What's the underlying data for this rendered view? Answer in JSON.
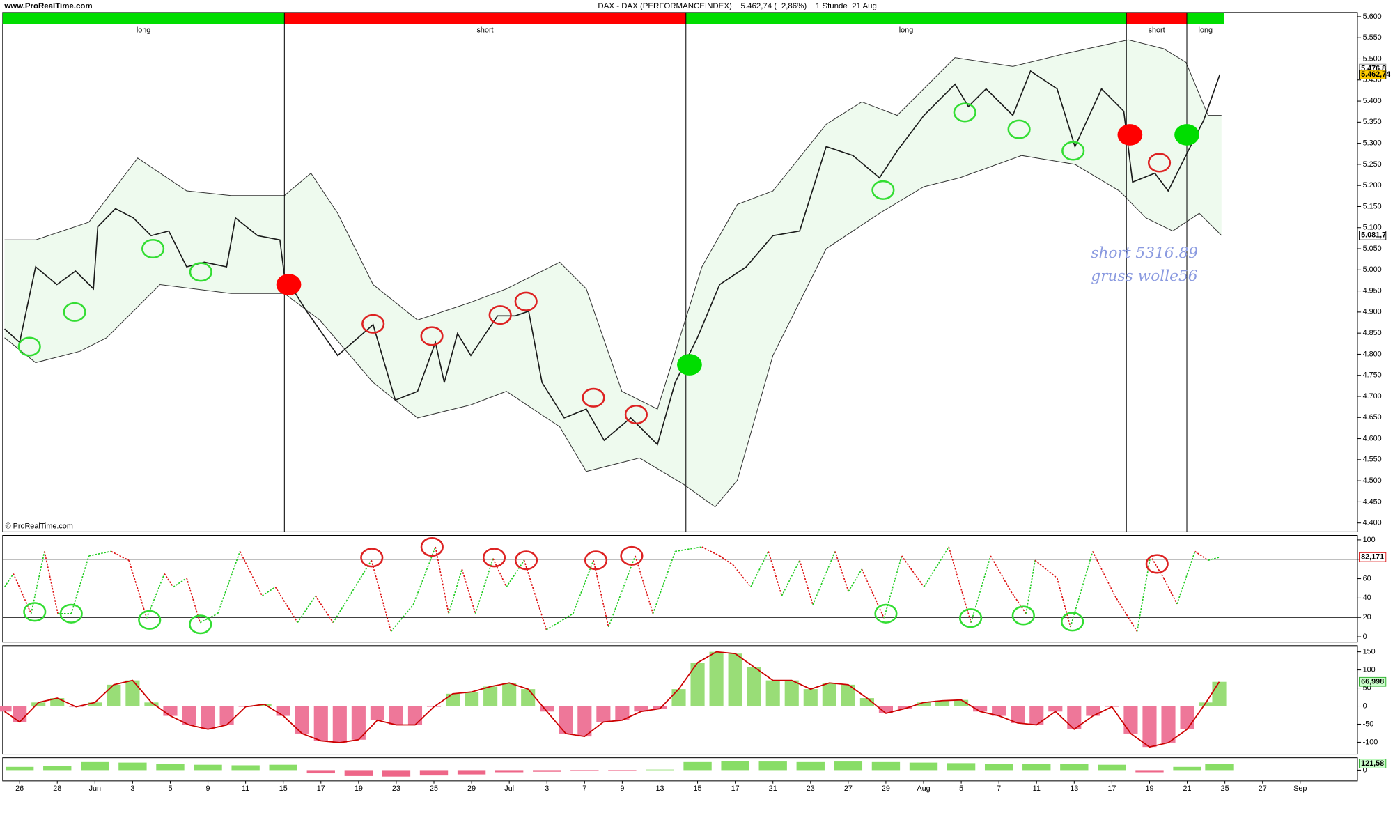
{
  "header": {
    "site": "www.ProRealTime.com",
    "title": "DAX - DAX (PERFORMANCEINDEX)    5.462,74 (+2,86%)    1 Stunde  21 Aug",
    "copyright": "© ProRealTime.com"
  },
  "chart_data": [
    {
      "type": "line",
      "color": "#1a1a1a",
      "xlim": [
        -0.9,
        71.04
      ],
      "ylim": [
        4379,
        5610
      ],
      "yticks": [
        {
          "value": 4400,
          "label": "4.400"
        },
        {
          "value": 4450,
          "label": "4.450"
        },
        {
          "value": 4500,
          "label": "4.500"
        },
        {
          "value": 4550,
          "label": "4.550"
        },
        {
          "value": 4600,
          "label": "4.600"
        },
        {
          "value": 4650,
          "label": "4.650"
        },
        {
          "value": 4700,
          "label": "4.700"
        },
        {
          "value": 4750,
          "label": "4.750"
        },
        {
          "value": 4800,
          "label": "4.800"
        },
        {
          "value": 4850,
          "label": "4.850"
        },
        {
          "value": 4900,
          "label": "4.900"
        },
        {
          "value": 4950,
          "label": "4.950"
        },
        {
          "value": 5000,
          "label": "5.000"
        },
        {
          "value": 5050,
          "label": "5.050"
        },
        {
          "value": 5100,
          "label": "5.100"
        },
        {
          "value": 5150,
          "label": "5.150"
        },
        {
          "value": 5200,
          "label": "5.200"
        },
        {
          "value": 5250,
          "label": "5.250"
        },
        {
          "value": 5300,
          "label": "5.300"
        },
        {
          "value": 5350,
          "label": "5.350"
        },
        {
          "value": 5400,
          "label": "5.400"
        },
        {
          "value": 5450,
          "label": "5.450"
        },
        {
          "value": 5500,
          "label": "5.500"
        },
        {
          "value": 5550,
          "label": "5.550"
        },
        {
          "value": 5600,
          "label": "5.600"
        }
      ],
      "x": [
        -0.8,
        0,
        0.85,
        1.98,
        2.97,
        3.92,
        4.15,
        5.09,
        6.04,
        6.98,
        7.92,
        8.87,
        9.81,
        10.99,
        11.46,
        12.64,
        13.82,
        14.06,
        15.24,
        16.89,
        18.77,
        19.95,
        21.13,
        22.08,
        22.55,
        23.25,
        23.96,
        25.38,
        26.32,
        27.03,
        27.74,
        28.92,
        30.09,
        31.04,
        32.45,
        33.87,
        34.81,
        35.99,
        37.17,
        38.58,
        40,
        41.42,
        42.83,
        44.25,
        45.66,
        46.6,
        48.02,
        49.67,
        50.38,
        51.32,
        52.74,
        53.68,
        55.09,
        56.04,
        57.45,
        58.63,
        59.1,
        60.28,
        60.99,
        61.93,
        62.88,
        63.73
      ],
      "values": [
        4860,
        4828,
        5007,
        4965,
        4997,
        4955,
        5102,
        5145,
        5123,
        5081,
        5092,
        5007,
        5018,
        5007,
        5123,
        5081,
        5071,
        4986,
        4902,
        4797,
        4870,
        4691,
        4712,
        4828,
        4733,
        4849,
        4797,
        4891,
        4891,
        4902,
        4733,
        4649,
        4670,
        4596,
        4649,
        4586,
        4733,
        4839,
        4965,
        5007,
        5081,
        5092,
        5292,
        5271,
        5218,
        5282,
        5366,
        5440,
        5387,
        5429,
        5366,
        5471,
        5429,
        5292,
        5429,
        5376,
        5208,
        5229,
        5187,
        5271,
        5355,
        5462.74
      ],
      "band_color": "#333333",
      "band_fill": "#eefaee",
      "band_upper": {
        "x": [
          -0.8,
          0.85,
          3.68,
          6.27,
          8.87,
          11.23,
          14.06,
          15.47,
          16.89,
          18.77,
          21.13,
          23.96,
          25.85,
          28.68,
          30.09,
          31.98,
          33.87,
          36.23,
          38.11,
          40,
          42.83,
          44.72,
          46.6,
          49.67,
          52.74,
          55.57,
          58.87,
          60.75,
          61.93,
          63.11,
          63.82
        ],
        "values": [
          5071,
          5071,
          5113,
          5265,
          5187,
          5176,
          5176,
          5229,
          5134,
          4965,
          4881,
          4923,
          4955,
          5018,
          4955,
          4712,
          4670,
          5007,
          5155,
          5187,
          5345,
          5398,
          5366,
          5503,
          5482,
          5513,
          5545,
          5524,
          5492,
          5366,
          5366
        ]
      },
      "band_lower": {
        "x": [
          -0.8,
          0.85,
          3.21,
          4.62,
          7.45,
          11.23,
          14.06,
          15.94,
          18.77,
          21.13,
          23.96,
          25.85,
          28.68,
          30.09,
          32.92,
          35.28,
          36.93,
          38.11,
          40,
          42.83,
          45.66,
          48.02,
          49.91,
          53.21,
          56.04,
          58.4,
          59.81,
          61.23,
          62.64,
          63.82
        ],
        "values": [
          4839,
          4780,
          4807,
          4839,
          4965,
          4944,
          4944,
          4881,
          4733,
          4649,
          4680,
          4712,
          4628,
          4522,
          4554,
          4491,
          4438,
          4501,
          4797,
          5050,
          5134,
          5197,
          5218,
          5271,
          5250,
          5187,
          5123,
          5092,
          5134,
          5081.7
        ]
      },
      "regimes": [
        {
          "label": "long",
          "start": -0.9,
          "end": 14.06,
          "color": "#00dd00"
        },
        {
          "label": "short",
          "start": 14.06,
          "end": 35.38,
          "color": "#ff0000"
        },
        {
          "label": "long",
          "start": 35.38,
          "end": 58.77,
          "color": "#00dd00"
        },
        {
          "label": "short",
          "start": 58.77,
          "end": 61.98,
          "color": "#ff0000"
        },
        {
          "label": "long",
          "start": 61.98,
          "end": 63.96,
          "color": "#00dd00"
        }
      ],
      "signals": [
        {
          "x": 14.29,
          "y": 4965,
          "color": "#ff0000"
        },
        {
          "x": 35.57,
          "y": 4775,
          "color": "#00dd00"
        },
        {
          "x": 58.96,
          "y": 5320,
          "color": "#ff0000"
        },
        {
          "x": 61.98,
          "y": 5320,
          "color": "#00dd00"
        }
      ],
      "circles": [
        {
          "x": 0.52,
          "y": 4818,
          "color": "#33dd33"
        },
        {
          "x": 2.92,
          "y": 4900,
          "color": "#33dd33"
        },
        {
          "x": 7.08,
          "y": 5050,
          "color": "#33dd33"
        },
        {
          "x": 9.62,
          "y": 4995,
          "color": "#33dd33"
        },
        {
          "x": 45.85,
          "y": 5189,
          "color": "#33dd33"
        },
        {
          "x": 50.19,
          "y": 5373,
          "color": "#33dd33"
        },
        {
          "x": 53.07,
          "y": 5333,
          "color": "#33dd33"
        },
        {
          "x": 55.94,
          "y": 5282,
          "color": "#33dd33"
        },
        {
          "x": 18.77,
          "y": 4872,
          "color": "#dd2222"
        },
        {
          "x": 21.89,
          "y": 4843,
          "color": "#dd2222"
        },
        {
          "x": 25.52,
          "y": 4893,
          "color": "#dd2222"
        },
        {
          "x": 26.89,
          "y": 4925,
          "color": "#dd2222"
        },
        {
          "x": 30.47,
          "y": 4697,
          "color": "#dd2222"
        },
        {
          "x": 32.74,
          "y": 4657,
          "color": "#dd2222"
        },
        {
          "x": 60.52,
          "y": 5254,
          "color": "#dd2222"
        }
      ],
      "annotations": [
        "short 5316.89",
        "gruss wolle56"
      ],
      "last_labels": [
        {
          "value": 5476.8,
          "label": "5.476,8",
          "fill": "#ffffff",
          "stroke": "#888888"
        },
        {
          "value": 5462.74,
          "label": "5.462,74",
          "fill": "#ffcc00",
          "stroke": "#000000"
        },
        {
          "value": 5081.7,
          "label": "5.081,7",
          "fill": "#ffffff",
          "stroke": "#000000"
        }
      ]
    },
    {
      "type": "line",
      "up_color": "#22cc22",
      "down_color": "#dd1111",
      "xlim": [
        -0.9,
        71.04
      ],
      "ylim": [
        -5.5,
        104.6
      ],
      "yticks": [
        0,
        20,
        40,
        60,
        80,
        100
      ],
      "levels": [
        20,
        80
      ],
      "x": [
        -0.8,
        -0.33,
        0.61,
        1.32,
        2.03,
        2.74,
        3.68,
        4.86,
        5.8,
        6.75,
        7.69,
        8.16,
        8.87,
        9.58,
        10.52,
        11.7,
        12.88,
        13.58,
        14.76,
        15.71,
        16.65,
        18.68,
        19.72,
        20.9,
        22.08,
        22.78,
        23.49,
        24.2,
        25.14,
        25.85,
        26.79,
        27.97,
        29.39,
        30.47,
        31.27,
        32.69,
        33.63,
        34.81,
        36.23,
        37.17,
        37.88,
        38.82,
        39.76,
        40.47,
        41.42,
        42.12,
        43.3,
        44.01,
        44.72,
        45.9,
        46.84,
        48.02,
        49.34,
        50.52,
        51.56,
        52.64,
        53.44,
        53.92,
        55.09,
        55.8,
        56.98,
        58.16,
        59.34,
        60.05,
        60.75,
        61.46,
        62.41,
        63.11,
        63.73
      ],
      "values": [
        51.4,
        65.1,
        23.9,
        88.1,
        23.9,
        23.9,
        83.5,
        88.1,
        78.9,
        19.3,
        65.1,
        51.4,
        60.6,
        14.7,
        23.9,
        88.1,
        42.2,
        51.4,
        14.7,
        42.2,
        14.7,
        78.9,
        5.5,
        33,
        92.7,
        23.9,
        69.7,
        23.9,
        80.7,
        51.4,
        78.9,
        7.3,
        23.9,
        78.9,
        10.1,
        83.5,
        23.9,
        88.1,
        92.7,
        83.5,
        74.3,
        51.4,
        88.1,
        42.2,
        78.9,
        33,
        88.1,
        46.8,
        69.7,
        19.3,
        83.5,
        51.4,
        92.7,
        14.7,
        83.5,
        46.8,
        23.9,
        78.9,
        60.6,
        10.1,
        88.1,
        42.2,
        5.5,
        83.5,
        60.6,
        33.9,
        88.1,
        78.9,
        82.171
      ],
      "circles": [
        {
          "x": 0.8,
          "y": 25.7,
          "color": "#33dd33"
        },
        {
          "x": 2.74,
          "y": 23.9,
          "color": "#33dd33"
        },
        {
          "x": 6.9,
          "y": 17.4,
          "color": "#33dd33"
        },
        {
          "x": 9.6,
          "y": 12.8,
          "color": "#33dd33"
        },
        {
          "x": 46,
          "y": 23.9,
          "color": "#33dd33"
        },
        {
          "x": 50.5,
          "y": 19.3,
          "color": "#33dd33"
        },
        {
          "x": 53.3,
          "y": 22,
          "color": "#33dd33"
        },
        {
          "x": 55.9,
          "y": 15.6,
          "color": "#33dd33"
        },
        {
          "x": 18.7,
          "y": 81.7,
          "color": "#dd2222"
        },
        {
          "x": 21.9,
          "y": 92.7,
          "color": "#dd2222"
        },
        {
          "x": 25.2,
          "y": 81.7,
          "color": "#dd2222"
        },
        {
          "x": 26.9,
          "y": 78.9,
          "color": "#dd2222"
        },
        {
          "x": 30.6,
          "y": 78.9,
          "color": "#dd2222"
        },
        {
          "x": 32.5,
          "y": 83.5,
          "color": "#dd2222"
        },
        {
          "x": 60.4,
          "y": 75.2,
          "color": "#dd2222"
        }
      ],
      "last_labels": [
        {
          "value": 82.171,
          "label": "82,171",
          "fill": "#ffffff",
          "stroke": "#dd1111"
        }
      ]
    },
    {
      "type": "bar",
      "pos_color": "#99dd77",
      "neg_color": "#ee7799",
      "line_color": "#cc0000",
      "zero_color": "#3333cc",
      "xlim": [
        -0.9,
        71.04
      ],
      "ylim": [
        -133,
        167
      ],
      "yticks": [
        -100,
        -50,
        0,
        50,
        100,
        150
      ],
      "x": [
        -0.8,
        0,
        1,
        2,
        3,
        4,
        5,
        6,
        7,
        8,
        9,
        10,
        11,
        12,
        13,
        14,
        15,
        16,
        17,
        18,
        19,
        20,
        21,
        22,
        23,
        24,
        25,
        26,
        27,
        28,
        29,
        30,
        31,
        32,
        33,
        34,
        35,
        36,
        37,
        38,
        39,
        40,
        41,
        42,
        43,
        44,
        45,
        46,
        47,
        48,
        49,
        50,
        51,
        52,
        53,
        54,
        55,
        56,
        57,
        58,
        59,
        60,
        61,
        62,
        63,
        63.7
      ],
      "values": [
        -15,
        -44,
        10,
        22,
        -2,
        10,
        59,
        71,
        10,
        -27,
        -52,
        -64,
        -52,
        -2,
        5,
        -27,
        -76,
        -96,
        -101,
        -93,
        -39,
        -52,
        -52,
        -2,
        34,
        39,
        54,
        64,
        47,
        -15,
        -76,
        -84,
        -44,
        -39,
        -15,
        -7,
        47,
        120,
        150,
        145,
        108,
        71,
        71,
        47,
        64,
        59,
        22,
        -20,
        -7,
        10,
        15,
        17,
        -15,
        -27,
        -47,
        -52,
        -15,
        -64,
        -27,
        -2,
        -76,
        -113,
        -101,
        -64,
        10,
        66.998
      ],
      "last_labels": [
        {
          "value": 66.998,
          "label": "66,998",
          "fill": "#ccffcc",
          "stroke": "#22aa22"
        }
      ]
    },
    {
      "type": "bar",
      "pos_color": "#88dd66",
      "neg_color": "#ee6688",
      "xlim": [
        -0.9,
        71.04
      ],
      "ylim": [
        -200,
        230
      ],
      "yticks": [
        0
      ],
      "x": [
        0,
        2,
        4,
        6,
        8,
        10,
        12,
        14,
        16,
        18,
        20,
        22,
        24,
        26,
        28,
        30,
        32,
        34,
        36,
        38,
        40,
        42,
        44,
        46,
        48,
        50,
        52,
        54,
        56,
        58,
        60,
        62,
        63.7
      ],
      "values": [
        60,
        70,
        150,
        140,
        110,
        100,
        90,
        100,
        -60,
        -110,
        -120,
        -100,
        -80,
        -40,
        -30,
        -20,
        -10,
        10,
        150,
        170,
        160,
        150,
        160,
        150,
        140,
        130,
        120,
        110,
        110,
        100,
        -40,
        60,
        121.58
      ],
      "last_labels": [
        {
          "value": 121.58,
          "label": "121,58",
          "fill": "#ccffcc",
          "stroke": "#22aa22"
        }
      ],
      "xticks": [
        {
          "value": 0,
          "label": "26"
        },
        {
          "value": 2,
          "label": "28"
        },
        {
          "value": 4,
          "label": "Jun"
        },
        {
          "value": 6,
          "label": "3"
        },
        {
          "value": 8,
          "label": "5"
        },
        {
          "value": 10,
          "label": "9"
        },
        {
          "value": 12,
          "label": "11"
        },
        {
          "value": 14,
          "label": "15"
        },
        {
          "value": 16,
          "label": "17"
        },
        {
          "value": 18,
          "label": "19"
        },
        {
          "value": 20,
          "label": "23"
        },
        {
          "value": 22,
          "label": "25"
        },
        {
          "value": 24,
          "label": "29"
        },
        {
          "value": 26,
          "label": "Jul"
        },
        {
          "value": 28,
          "label": "3"
        },
        {
          "value": 30,
          "label": "7"
        },
        {
          "value": 32,
          "label": "9"
        },
        {
          "value": 34,
          "label": "13"
        },
        {
          "value": 36,
          "label": "15"
        },
        {
          "value": 38,
          "label": "17"
        },
        {
          "value": 40,
          "label": "21"
        },
        {
          "value": 42,
          "label": "23"
        },
        {
          "value": 44,
          "label": "27"
        },
        {
          "value": 46,
          "label": "29"
        },
        {
          "value": 48,
          "label": "Aug"
        },
        {
          "value": 50,
          "label": "5"
        },
        {
          "value": 52,
          "label": "7"
        },
        {
          "value": 54,
          "label": "11"
        },
        {
          "value": 56,
          "label": "13"
        },
        {
          "value": 58,
          "label": "17"
        },
        {
          "value": 60,
          "label": "19"
        },
        {
          "value": 62,
          "label": "21"
        },
        {
          "value": 64,
          "label": "25"
        },
        {
          "value": 66,
          "label": "27"
        },
        {
          "value": 68,
          "label": "Sep"
        }
      ]
    }
  ]
}
